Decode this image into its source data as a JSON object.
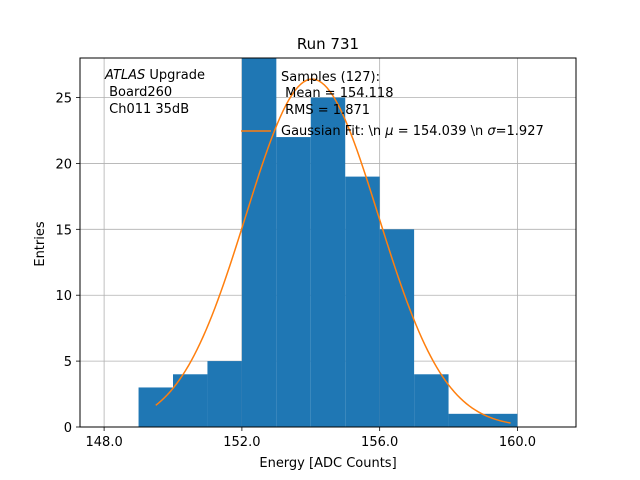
{
  "chart_data": {
    "type": "bar",
    "title": "Run 731",
    "xlabel": "Energy [ADC Counts]",
    "ylabel": "Entries",
    "xlim": [
      147.3,
      161.7
    ],
    "ylim": [
      0,
      28.0
    ],
    "xticks": [
      148.0,
      152.0,
      156.0,
      160.0
    ],
    "xtick_labels": [
      "148.0",
      "152.0",
      "156.0",
      "160.0"
    ],
    "yticks": [
      0,
      5,
      10,
      15,
      20,
      25
    ],
    "ytick_labels": [
      "0",
      "5",
      "10",
      "15",
      "20",
      "25"
    ],
    "grid": true,
    "bar_color": "#1f77b4",
    "fit_color": "#ff7f0e",
    "bins": [
      {
        "x0": 149,
        "x1": 150,
        "count": 3
      },
      {
        "x0": 150,
        "x1": 151,
        "count": 4
      },
      {
        "x0": 151,
        "x1": 152,
        "count": 5
      },
      {
        "x0": 152,
        "x1": 153,
        "count": 28
      },
      {
        "x0": 153,
        "x1": 154,
        "count": 22
      },
      {
        "x0": 154,
        "x1": 155,
        "count": 25
      },
      {
        "x0": 155,
        "x1": 156,
        "count": 19
      },
      {
        "x0": 156,
        "x1": 157,
        "count": 15
      },
      {
        "x0": 157,
        "x1": 158,
        "count": 4
      },
      {
        "x0": 158,
        "x1": 159,
        "count": 1
      },
      {
        "x0": 159,
        "x1": 160,
        "count": 1
      }
    ],
    "fit": {
      "mu": 154.039,
      "sigma": 1.927,
      "amplitude": 26.4,
      "x_start": 149.5,
      "x_end": 159.8
    },
    "annotation": {
      "prefix_italic": "ATLAS",
      "prefix_rest": " Upgrade",
      "line2": " Board260",
      "line3": " Ch011 35dB"
    },
    "legend": {
      "placement": "top-right",
      "entries": [
        {
          "line1": "Samples (127):",
          "line2": " Mean = 154.118",
          "line3": " RMS = 1.871"
        },
        {
          "text_a": "Gaussian Fit: \\n ",
          "sym_mu": "μ",
          "text_b": " = 154.039 \\n ",
          "sym_sigma": "σ",
          "text_c": "=1.927"
        }
      ]
    }
  }
}
